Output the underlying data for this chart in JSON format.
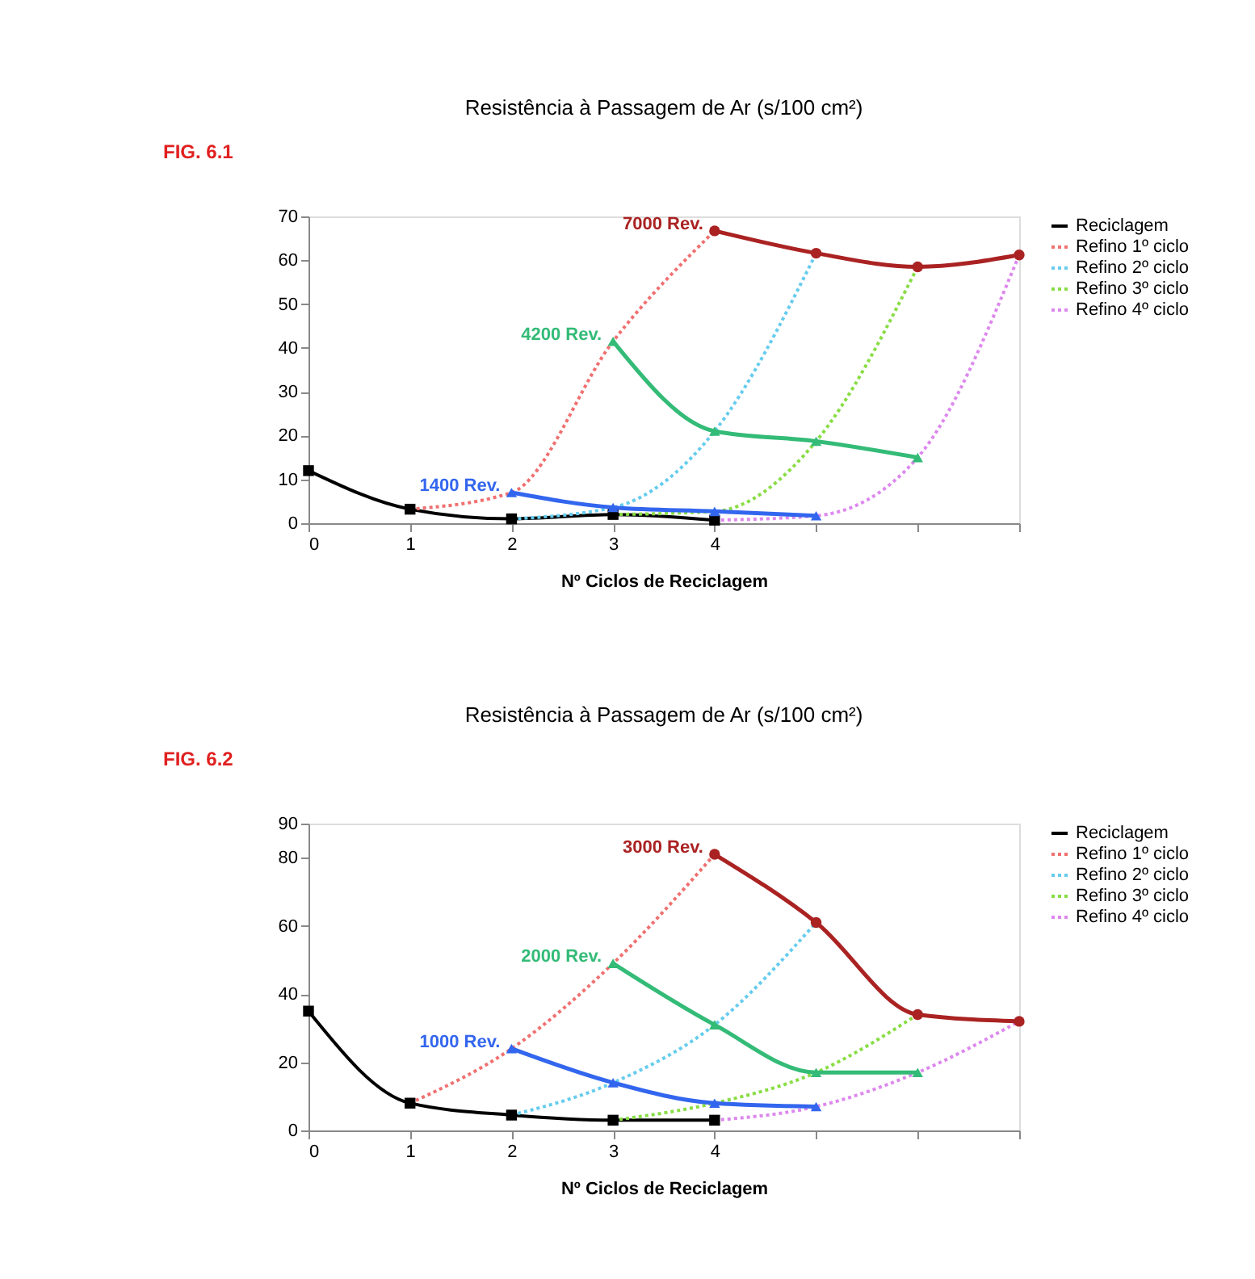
{
  "chart_data": [
    {
      "type": "line",
      "title": "Resistência à Passagem de Ar (s/100 cm²)",
      "xlabel": "Nº Ciclos de  Reciclagem",
      "annotations": [
        "FIG. 6.1"
      ],
      "legend": "right",
      "xlim": [
        0,
        7
      ],
      "xticks": [
        0,
        1,
        2,
        3,
        4,
        {
          "value": 5,
          "label": null
        },
        {
          "value": 6,
          "label": null
        },
        {
          "value": 7,
          "label": null
        }
      ],
      "ylim": [
        0,
        70
      ],
      "yticks": [
        0,
        10,
        20,
        30,
        40,
        50,
        60,
        70
      ],
      "series": [
        {
          "name": "Reciclagem",
          "color": "#000000",
          "marker": "square",
          "line_style": "solid",
          "x": [
            0,
            1,
            2,
            3,
            4
          ],
          "values": [
            12,
            3.2,
            1,
            2,
            0.7
          ]
        },
        {
          "name": "Refino 1º ciclo",
          "color": "#f07070",
          "marker": "none",
          "line_style": "dotted",
          "x": [
            1,
            2,
            3,
            4
          ],
          "values": [
            3.2,
            7,
            41.5,
            66.7
          ]
        },
        {
          "name": "Refino 2º ciclo",
          "color": "#66ccee",
          "marker": "none",
          "line_style": "dotted",
          "x": [
            2,
            3,
            4,
            5
          ],
          "values": [
            1,
            3.6,
            21,
            61.6
          ]
        },
        {
          "name": "Refino 3º ciclo",
          "color": "#88dd44",
          "marker": "none",
          "line_style": "dotted",
          "x": [
            3,
            4,
            5,
            6
          ],
          "values": [
            2,
            2.7,
            18.7,
            58.5
          ]
        },
        {
          "name": "Refino 4º ciclo",
          "color": "#dd88ee",
          "marker": "none",
          "line_style": "dotted",
          "x": [
            4,
            5,
            6,
            7
          ],
          "values": [
            0.7,
            1.7,
            15,
            61.2
          ]
        },
        {
          "name": "1400 Rev.",
          "color": "#3366ee",
          "marker": "triangle",
          "line_style": "solid",
          "x": [
            2,
            3,
            4,
            5
          ],
          "values": [
            7,
            3.6,
            2.7,
            1.7
          ]
        },
        {
          "name": "4200 Rev.",
          "color": "#33bb77",
          "marker": "triangle",
          "line_style": "solid",
          "x": [
            3,
            4,
            5,
            6
          ],
          "values": [
            41.5,
            21,
            18.7,
            15
          ]
        },
        {
          "name": "7000 Rev.",
          "color": "#aa2222",
          "marker": "circle",
          "line_style": "solid",
          "x": [
            4,
            5,
            6,
            7
          ],
          "values": [
            66.7,
            61.6,
            58.5,
            61.2
          ]
        }
      ]
    },
    {
      "type": "line",
      "title": "Resistência à Passagem de Ar (s/100 cm²)",
      "xlabel": "Nº Ciclos de Reciclagem",
      "annotations": [
        "FIG. 6.2"
      ],
      "legend": "right",
      "xlim": [
        0,
        7
      ],
      "xticks": [
        0,
        1,
        2,
        3,
        4,
        {
          "value": 5,
          "label": null
        },
        {
          "value": 6,
          "label": null
        },
        {
          "value": 7,
          "label": null
        }
      ],
      "ylim": [
        0,
        90
      ],
      "yticks": [
        0,
        20,
        40,
        60,
        80,
        90
      ],
      "series": [
        {
          "name": "Reciclagem",
          "color": "#000000",
          "marker": "square",
          "line_style": "solid",
          "x": [
            0,
            1,
            2,
            3,
            4
          ],
          "values": [
            35,
            8,
            4.5,
            3,
            3
          ]
        },
        {
          "name": "Refino 1º ciclo",
          "color": "#f07070",
          "marker": "none",
          "line_style": "dotted",
          "x": [
            1,
            2,
            3,
            4
          ],
          "values": [
            8,
            24,
            49,
            81
          ]
        },
        {
          "name": "Refino 2º ciclo",
          "color": "#66ccee",
          "marker": "none",
          "line_style": "dotted",
          "x": [
            2,
            3,
            4,
            5
          ],
          "values": [
            4.5,
            14,
            31,
            61
          ]
        },
        {
          "name": "Refino 3º ciclo",
          "color": "#88dd44",
          "marker": "none",
          "line_style": "dotted",
          "x": [
            3,
            4,
            5,
            6
          ],
          "values": [
            3,
            8,
            17,
            34
          ]
        },
        {
          "name": "Refino 4º ciclo",
          "color": "#dd88ee",
          "marker": "none",
          "line_style": "dotted",
          "x": [
            4,
            5,
            6,
            7
          ],
          "values": [
            3,
            7,
            17,
            32
          ]
        },
        {
          "name": "1000 Rev.",
          "color": "#3366ee",
          "marker": "triangle",
          "line_style": "solid",
          "x": [
            2,
            3,
            4,
            5
          ],
          "values": [
            24,
            14,
            8,
            7
          ]
        },
        {
          "name": "2000 Rev.",
          "color": "#33bb77",
          "marker": "triangle",
          "line_style": "solid",
          "x": [
            3,
            4,
            5,
            6
          ],
          "values": [
            49,
            31,
            17,
            17
          ]
        },
        {
          "name": "3000 Rev.",
          "color": "#aa2222",
          "marker": "circle",
          "line_style": "solid",
          "x": [
            4,
            5,
            6,
            7
          ],
          "values": [
            81,
            61,
            34,
            32
          ]
        }
      ]
    }
  ]
}
